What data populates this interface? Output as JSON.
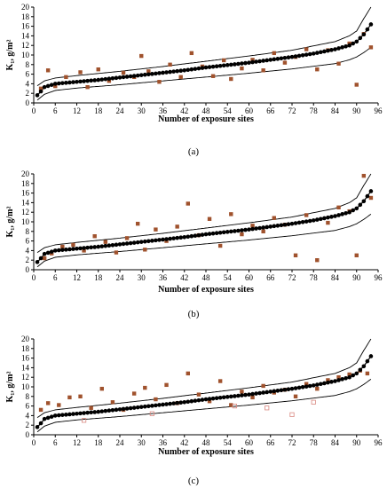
{
  "chart_data": [
    {
      "type": "scatter",
      "panel_label": "(a)",
      "ylabel": "K₁, g/m²",
      "xlabel": "Number of exposure sites",
      "xlim": [
        0,
        96
      ],
      "ylim": [
        0,
        20
      ],
      "x_ticks": [
        0,
        6,
        12,
        18,
        24,
        30,
        36,
        42,
        48,
        54,
        60,
        66,
        72,
        78,
        84,
        90,
        96
      ],
      "y_ticks": [
        0,
        2,
        4,
        6,
        8,
        10,
        12,
        14,
        16,
        18,
        20
      ],
      "grid": false,
      "series": [
        {
          "kind": "ranked-line",
          "color": "#000000",
          "x": [
            1,
            2,
            3,
            6,
            12,
            18,
            24,
            30,
            36,
            42,
            48,
            54,
            60,
            66,
            72,
            78,
            84,
            88,
            90,
            92,
            94
          ],
          "y": [
            1.6,
            2.4,
            3.3,
            4.0,
            4.4,
            4.8,
            5.3,
            5.8,
            6.3,
            6.8,
            7.4,
            7.9,
            8.4,
            9.0,
            9.6,
            10.3,
            11.2,
            12.0,
            12.8,
            14.3,
            16.4
          ]
        },
        {
          "kind": "upper-bound",
          "color": "#000000",
          "x": [
            1,
            3,
            6,
            12,
            24,
            36,
            48,
            60,
            72,
            84,
            88,
            90,
            92,
            94
          ],
          "y": [
            3.6,
            4.6,
            5.2,
            5.7,
            6.6,
            7.6,
            8.7,
            9.8,
            11.0,
            12.8,
            14.0,
            15.0,
            17.6,
            20.0
          ]
        },
        {
          "kind": "lower-bound",
          "color": "#000000",
          "x": [
            1,
            3,
            6,
            12,
            24,
            36,
            48,
            60,
            72,
            84,
            88,
            90,
            92,
            94
          ],
          "y": [
            0.6,
            1.8,
            2.6,
            3.1,
            3.8,
            4.6,
            5.4,
            6.2,
            7.1,
            8.2,
            9.0,
            9.6,
            10.5,
            11.6
          ]
        },
        {
          "kind": "comparison-points",
          "color": "#a0522d",
          "x": [
            2,
            4,
            6,
            9,
            13,
            15,
            18,
            21,
            25,
            28,
            30,
            32,
            35,
            38,
            41,
            44,
            47,
            50,
            53,
            55,
            58,
            61,
            64,
            67,
            70,
            73,
            76,
            79,
            82,
            85,
            88,
            90,
            92,
            94
          ],
          "y": [
            3.0,
            6.8,
            3.5,
            5.4,
            6.4,
            3.3,
            7.0,
            4.6,
            6.3,
            5.4,
            9.8,
            6.6,
            4.4,
            8.0,
            5.4,
            10.4,
            7.6,
            5.6,
            8.9,
            5.0,
            7.2,
            9.0,
            6.8,
            10.4,
            8.4,
            9.6,
            11.2,
            7.0,
            11.0,
            8.2,
            12.4,
            3.8,
            14.4,
            11.6
          ]
        }
      ]
    },
    {
      "type": "scatter",
      "panel_label": "(b)",
      "ylabel": "K₁, g/m²",
      "xlabel": "Number of exposure sites",
      "xlim": [
        0,
        96
      ],
      "ylim": [
        0,
        20
      ],
      "x_ticks": [
        0,
        6,
        12,
        18,
        24,
        30,
        36,
        42,
        48,
        54,
        60,
        66,
        72,
        78,
        84,
        90,
        96
      ],
      "y_ticks": [
        0,
        2,
        4,
        6,
        8,
        10,
        12,
        14,
        16,
        18,
        20
      ],
      "grid": false,
      "series": [
        {
          "kind": "ranked-line",
          "color": "#000000",
          "x": [
            1,
            2,
            3,
            6,
            12,
            18,
            24,
            30,
            36,
            42,
            48,
            54,
            60,
            66,
            72,
            78,
            84,
            88,
            90,
            92,
            94
          ],
          "y": [
            1.6,
            2.4,
            3.3,
            4.0,
            4.4,
            4.8,
            5.3,
            5.8,
            6.3,
            6.8,
            7.4,
            7.9,
            8.4,
            9.0,
            9.6,
            10.3,
            11.2,
            12.0,
            12.8,
            14.3,
            16.4
          ]
        },
        {
          "kind": "upper-bound",
          "color": "#000000",
          "x": [
            1,
            3,
            6,
            12,
            24,
            36,
            48,
            60,
            72,
            84,
            88,
            90,
            92,
            94
          ],
          "y": [
            3.6,
            4.6,
            5.2,
            5.7,
            6.6,
            7.6,
            8.7,
            9.8,
            11.0,
            12.8,
            14.0,
            15.0,
            17.6,
            20.0
          ]
        },
        {
          "kind": "lower-bound",
          "color": "#000000",
          "x": [
            1,
            3,
            6,
            12,
            24,
            36,
            48,
            60,
            72,
            84,
            88,
            90,
            92,
            94
          ],
          "y": [
            0.6,
            1.8,
            2.6,
            3.1,
            3.8,
            4.6,
            5.4,
            6.2,
            7.1,
            8.2,
            9.0,
            9.6,
            10.5,
            11.6
          ]
        },
        {
          "kind": "comparison-points",
          "color": "#a0522d",
          "x": [
            3,
            5,
            8,
            11,
            14,
            17,
            20,
            23,
            26,
            29,
            31,
            34,
            37,
            40,
            43,
            46,
            49,
            52,
            55,
            58,
            61,
            64,
            67,
            70,
            73,
            76,
            79,
            82,
            85,
            88,
            90,
            92,
            94
          ],
          "y": [
            2.4,
            3.4,
            4.8,
            5.2,
            4.0,
            7.0,
            5.8,
            3.6,
            6.6,
            9.6,
            4.2,
            8.4,
            6.0,
            9.0,
            13.8,
            7.2,
            10.6,
            5.0,
            11.6,
            7.4,
            9.2,
            8.0,
            10.8,
            9.4,
            3.0,
            11.4,
            2.0,
            9.8,
            13.0,
            12.2,
            3.0,
            19.6,
            15.0
          ]
        }
      ]
    },
    {
      "type": "scatter",
      "panel_label": "(c)",
      "ylabel": "K₁, g/m²",
      "xlabel": "Number of exposure sites",
      "xlim": [
        0,
        96
      ],
      "ylim": [
        0,
        20
      ],
      "x_ticks": [
        0,
        6,
        12,
        18,
        24,
        30,
        36,
        42,
        48,
        54,
        60,
        66,
        72,
        78,
        84,
        90,
        96
      ],
      "y_ticks": [
        0,
        2,
        4,
        6,
        8,
        10,
        12,
        14,
        16,
        18,
        20
      ],
      "grid": false,
      "series": [
        {
          "kind": "ranked-line",
          "color": "#000000",
          "x": [
            1,
            2,
            3,
            6,
            12,
            18,
            24,
            30,
            36,
            42,
            48,
            54,
            60,
            66,
            72,
            78,
            84,
            88,
            90,
            92,
            94
          ],
          "y": [
            1.6,
            2.4,
            3.3,
            4.0,
            4.4,
            4.8,
            5.3,
            5.8,
            6.3,
            6.8,
            7.4,
            7.9,
            8.4,
            9.0,
            9.6,
            10.3,
            11.2,
            12.0,
            12.8,
            14.3,
            16.4
          ]
        },
        {
          "kind": "upper-bound",
          "color": "#000000",
          "x": [
            1,
            3,
            6,
            12,
            24,
            36,
            48,
            60,
            72,
            84,
            88,
            90,
            92,
            94
          ],
          "y": [
            3.6,
            4.6,
            5.2,
            5.7,
            6.6,
            7.6,
            8.7,
            9.8,
            11.0,
            12.8,
            14.0,
            15.0,
            17.6,
            20.0
          ]
        },
        {
          "kind": "lower-bound",
          "color": "#000000",
          "x": [
            1,
            3,
            6,
            12,
            24,
            36,
            48,
            60,
            72,
            84,
            88,
            90,
            92,
            94
          ],
          "y": [
            0.6,
            1.8,
            2.6,
            3.1,
            3.8,
            4.6,
            5.4,
            6.2,
            7.1,
            8.2,
            9.0,
            9.6,
            10.5,
            11.6
          ]
        },
        {
          "kind": "comparison-points",
          "color": "#a0522d",
          "x": [
            2,
            4,
            7,
            10,
            13,
            16,
            19,
            22,
            25,
            28,
            31,
            34,
            37,
            40,
            43,
            46,
            49,
            52,
            55,
            58,
            61,
            64,
            67,
            70,
            73,
            76,
            79,
            82,
            85,
            88,
            91,
            93
          ],
          "y": [
            5.2,
            6.6,
            6.2,
            7.8,
            8.0,
            5.6,
            9.6,
            6.8,
            5.2,
            8.6,
            9.8,
            7.4,
            10.4,
            6.6,
            12.8,
            8.4,
            7.0,
            11.2,
            6.2,
            9.0,
            7.8,
            10.2,
            8.8,
            9.4,
            8.0,
            10.6,
            9.6,
            11.4,
            12.0,
            12.6,
            13.4,
            12.8
          ]
        },
        {
          "kind": "comparison-points-open",
          "color": "#d98880",
          "x": [
            14,
            33,
            56,
            65,
            72,
            78
          ],
          "y": [
            3.0,
            4.4,
            6.0,
            5.6,
            4.2,
            6.8
          ]
        }
      ]
    }
  ]
}
